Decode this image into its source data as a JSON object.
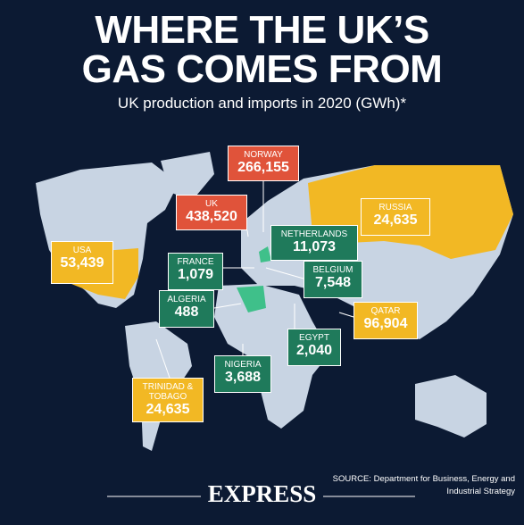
{
  "header": {
    "title": [
      "WHERE THE UK’S",
      "GAS COMES FROM"
    ],
    "subtitle": "UK production and imports in 2020 (GWh)*"
  },
  "labels": [
    {
      "name": "NORWAY",
      "value": "266,155"
    },
    {
      "name": "UK",
      "value": "438,520"
    },
    {
      "name": "USA",
      "value": "53,439"
    },
    {
      "name": "NETHERLANDS",
      "value": "11,073"
    },
    {
      "name": "RUSSIA",
      "value": "24,635"
    },
    {
      "name": "FRANCE",
      "value": "1,079"
    },
    {
      "name": "BELGIUM",
      "value": "7,548"
    },
    {
      "name": "ALGERIA",
      "value": "488"
    },
    {
      "name": "QATAR",
      "value": "96,904"
    },
    {
      "name": "EGYPT",
      "value": "2,040"
    },
    {
      "name": "NIGERIA",
      "value": "3,688"
    },
    {
      "name": "TRINIDAD & TOBAGO",
      "value": "24,635"
    }
  ],
  "footer": {
    "source": "SOURCE: Department for Business, Energy and Industrial Strategy",
    "brand": "EXPRESS"
  }
}
